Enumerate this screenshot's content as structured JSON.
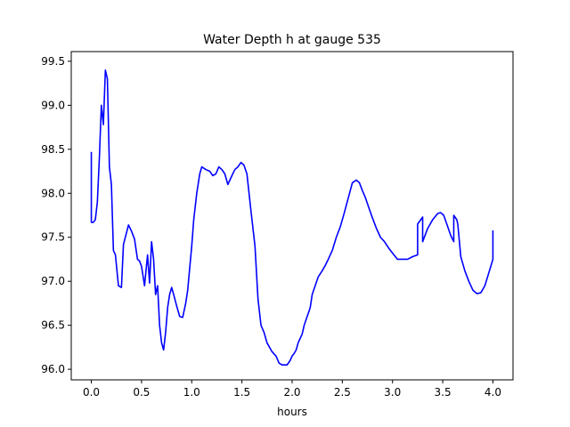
{
  "chart_data": {
    "type": "line",
    "title": "Water Depth h at gauge 535",
    "xlabel": "hours",
    "ylabel": "",
    "xlim": [
      -0.2,
      4.2
    ],
    "ylim": [
      95.88,
      99.61
    ],
    "grid": false,
    "x_ticks": [
      0.0,
      0.5,
      1.0,
      1.5,
      2.0,
      2.5,
      3.0,
      3.5,
      4.0
    ],
    "x_tick_labels": [
      "0.0",
      "0.5",
      "1.0",
      "1.5",
      "2.0",
      "2.5",
      "3.0",
      "3.5",
      "4.0"
    ],
    "y_ticks": [
      96.0,
      96.5,
      97.0,
      97.5,
      98.0,
      98.5,
      99.0,
      99.5
    ],
    "y_tick_labels": [
      "96.0",
      "96.5",
      "97.0",
      "97.5",
      "98.0",
      "98.5",
      "99.0",
      "99.5"
    ],
    "series": [
      {
        "color": "#0000ff",
        "x": [
          0.0,
          0.0,
          0.02,
          0.04,
          0.06,
          0.08,
          0.1,
          0.12,
          0.14,
          0.16,
          0.18,
          0.2,
          0.22,
          0.24,
          0.27,
          0.3,
          0.32,
          0.35,
          0.37,
          0.4,
          0.43,
          0.46,
          0.48,
          0.5,
          0.53,
          0.56,
          0.58,
          0.6,
          0.62,
          0.64,
          0.66,
          0.68,
          0.7,
          0.72,
          0.74,
          0.76,
          0.78,
          0.8,
          0.82,
          0.85,
          0.88,
          0.91,
          0.94,
          0.96,
          1.0,
          1.02,
          1.05,
          1.08,
          1.1,
          1.14,
          1.18,
          1.21,
          1.24,
          1.27,
          1.3,
          1.33,
          1.36,
          1.4,
          1.43,
          1.46,
          1.49,
          1.52,
          1.55,
          1.59,
          1.63,
          1.66,
          1.69,
          1.72,
          1.75,
          1.8,
          1.84,
          1.87,
          1.9,
          1.95,
          1.98,
          2.0,
          2.02,
          2.04,
          2.06,
          2.1,
          2.12,
          2.15,
          2.18,
          2.2,
          2.23,
          2.26,
          2.3,
          2.33,
          2.36,
          2.4,
          2.44,
          2.48,
          2.52,
          2.56,
          2.6,
          2.64,
          2.67,
          2.7,
          2.73,
          2.76,
          2.8,
          2.84,
          2.88,
          2.92,
          2.96,
          3.0,
          3.05,
          3.1,
          3.15,
          3.2,
          3.25,
          3.25,
          3.3,
          3.3,
          3.35,
          3.4,
          3.45,
          3.48,
          3.51,
          3.55,
          3.58,
          3.61,
          3.61,
          3.64,
          3.65,
          3.68,
          3.72,
          3.76,
          3.8,
          3.84,
          3.88,
          3.92,
          3.96,
          4.0,
          4.0
        ],
        "y": [
          98.47,
          97.67,
          97.67,
          97.7,
          97.9,
          98.4,
          99.0,
          98.78,
          99.4,
          99.3,
          98.3,
          98.1,
          97.35,
          97.3,
          96.95,
          96.93,
          97.42,
          97.55,
          97.64,
          97.57,
          97.48,
          97.25,
          97.23,
          97.17,
          96.95,
          97.3,
          96.98,
          97.45,
          97.25,
          96.85,
          96.95,
          96.5,
          96.3,
          96.22,
          96.42,
          96.7,
          96.85,
          96.93,
          96.85,
          96.72,
          96.6,
          96.59,
          96.75,
          96.9,
          97.4,
          97.7,
          98.0,
          98.22,
          98.3,
          98.27,
          98.25,
          98.2,
          98.22,
          98.3,
          98.27,
          98.22,
          98.1,
          98.2,
          98.27,
          98.3,
          98.35,
          98.32,
          98.22,
          97.8,
          97.4,
          96.8,
          96.5,
          96.42,
          96.3,
          96.2,
          96.15,
          96.07,
          96.05,
          96.05,
          96.1,
          96.15,
          96.18,
          96.22,
          96.3,
          96.4,
          96.5,
          96.6,
          96.7,
          96.85,
          96.95,
          97.05,
          97.12,
          97.18,
          97.25,
          97.35,
          97.5,
          97.62,
          97.78,
          97.95,
          98.12,
          98.15,
          98.12,
          98.03,
          97.95,
          97.85,
          97.72,
          97.6,
          97.5,
          97.45,
          97.38,
          97.32,
          97.25,
          97.25,
          97.25,
          97.28,
          97.3,
          97.65,
          97.73,
          97.45,
          97.6,
          97.7,
          97.77,
          97.78,
          97.75,
          97.62,
          97.52,
          97.45,
          97.75,
          97.7,
          97.65,
          97.28,
          97.12,
          97.0,
          96.9,
          96.86,
          96.87,
          96.95,
          97.1,
          97.25,
          97.58
        ]
      }
    ]
  }
}
